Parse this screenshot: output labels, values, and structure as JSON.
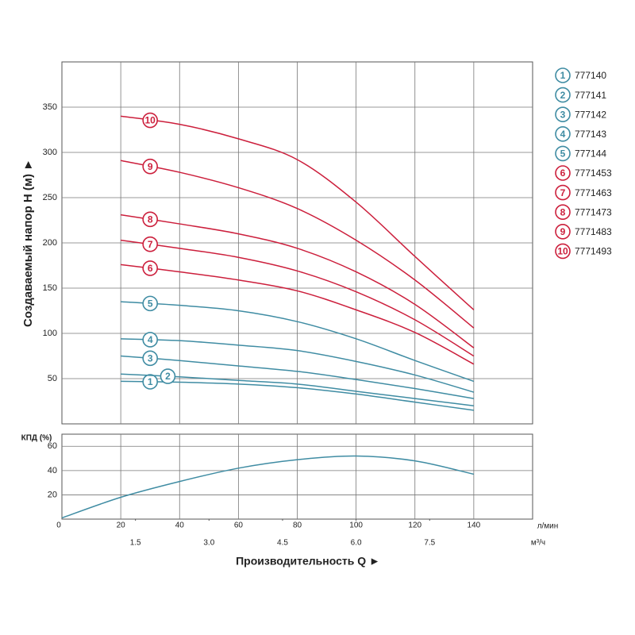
{
  "chart_data": [
    {
      "type": "line",
      "ylabel": "Создаваемый напор H (м) ►",
      "xlim": [
        0,
        160
      ],
      "ylim": [
        0,
        400
      ],
      "yticks": [
        50,
        100,
        150,
        200,
        250,
        300,
        350
      ],
      "grid": true,
      "x": [
        20,
        40,
        60,
        80,
        100,
        120,
        140
      ],
      "series": [
        {
          "label": "1",
          "name": "777140",
          "color": "#3f8ca3",
          "values": [
            47,
            46,
            44,
            40,
            33,
            24,
            15
          ]
        },
        {
          "label": "2",
          "name": "777141",
          "color": "#3f8ca3",
          "values": [
            55,
            52,
            48,
            44,
            36,
            28,
            20
          ]
        },
        {
          "label": "3",
          "name": "777142",
          "color": "#3f8ca3",
          "values": [
            75,
            70,
            64,
            58,
            49,
            39,
            28
          ]
        },
        {
          "label": "4",
          "name": "777143",
          "color": "#3f8ca3",
          "values": [
            94,
            92,
            87,
            81,
            69,
            54,
            35
          ]
        },
        {
          "label": "5",
          "name": "777144",
          "color": "#3f8ca3",
          "values": [
            135,
            131,
            125,
            113,
            94,
            70,
            47
          ]
        },
        {
          "label": "6",
          "name": "7771453",
          "color": "#cc1f3c",
          "values": [
            176,
            168,
            159,
            147,
            126,
            101,
            66
          ]
        },
        {
          "label": "7",
          "name": "7771463",
          "color": "#cc1f3c",
          "values": [
            203,
            194,
            184,
            169,
            146,
            115,
            75
          ]
        },
        {
          "label": "8",
          "name": "7771473",
          "color": "#cc1f3c",
          "values": [
            231,
            221,
            210,
            194,
            168,
            132,
            84
          ]
        },
        {
          "label": "9",
          "name": "7771483",
          "color": "#cc1f3c",
          "values": [
            291,
            278,
            261,
            238,
            203,
            159,
            106
          ]
        },
        {
          "label": "10",
          "name": "7771493",
          "color": "#cc1f3c",
          "values": [
            340,
            331,
            315,
            292,
            245,
            185,
            126
          ]
        }
      ]
    },
    {
      "type": "line",
      "ylabel": "КПД (%)",
      "xlim": [
        0,
        160
      ],
      "ylim": [
        0,
        70
      ],
      "yticks": [
        20,
        40,
        60
      ],
      "xticks": [
        0,
        20,
        40,
        60,
        80,
        100,
        120,
        140
      ],
      "xunit": "л/мин",
      "x2lim": [
        0,
        9.6
      ],
      "x2ticks": [
        {
          "value": 1.5,
          "label": "1.5"
        },
        {
          "value": 3,
          "label": "3.0"
        },
        {
          "value": 4.5,
          "label": "4.5"
        },
        {
          "value": 6,
          "label": "6.0"
        },
        {
          "value": 7.5,
          "label": "7.5"
        }
      ],
      "x2unit": "м³/ч",
      "xlabel": "Производительность Q ►",
      "grid": true,
      "x": [
        0,
        20,
        40,
        60,
        80,
        100,
        120,
        140
      ],
      "series": [
        {
          "color": "#3f8ca3",
          "values": [
            1,
            18,
            31,
            42,
            49,
            52,
            48,
            37
          ]
        }
      ]
    }
  ]
}
